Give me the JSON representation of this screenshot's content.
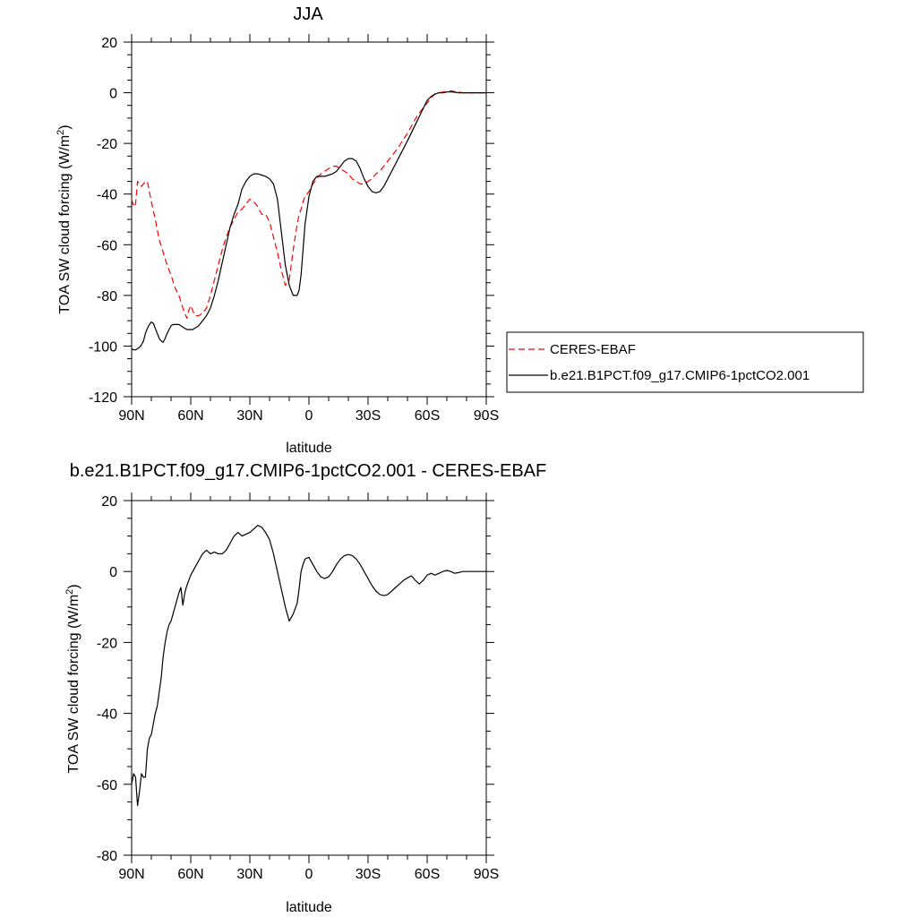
{
  "chart_data": [
    {
      "type": "line",
      "title": "JJA",
      "xlabel": "latitude",
      "ylabel": "TOA SW cloud forcing (W/m",
      "ylabel_sup": "2",
      "ylabel_end": ")",
      "xlim": [
        90,
        -90
      ],
      "ylim": [
        -120,
        20
      ],
      "x_ticks": [
        90,
        60,
        30,
        0,
        -30,
        -60,
        -90
      ],
      "x_tick_labels": [
        "90N",
        "60N",
        "30N",
        "0",
        "30S",
        "60S",
        "90S"
      ],
      "y_ticks": [
        20,
        0,
        -20,
        -40,
        -60,
        -80,
        -100,
        -120
      ],
      "y_tick_labels": [
        "20",
        "0",
        "-20",
        "-40",
        "-60",
        "-80",
        "-100",
        "-120"
      ],
      "legend_position": "right",
      "series": [
        {
          "name": "CERES-EBAF",
          "color": "#ff0000",
          "dash": "dashed",
          "x": [
            90,
            89,
            88,
            87,
            86,
            85,
            84,
            83,
            82,
            80,
            78,
            76,
            74,
            72,
            70,
            68,
            66,
            64,
            62,
            61,
            60,
            59,
            58,
            56,
            54,
            52,
            50,
            48,
            46,
            44,
            42,
            40,
            38,
            36,
            34,
            32,
            30,
            28,
            26,
            24,
            22,
            20,
            18,
            16,
            14,
            12,
            10,
            8,
            6,
            5,
            4,
            3,
            2,
            0,
            -2,
            -4,
            -6,
            -8,
            -10,
            -12,
            -14,
            -16,
            -18,
            -20,
            -22,
            -24,
            -26,
            -28,
            -30,
            -32,
            -34,
            -36,
            -38,
            -40,
            -45,
            -50,
            -55,
            -60,
            -62,
            -64,
            -66,
            -68,
            -70,
            -72,
            -74,
            -76,
            -78,
            -80,
            -85,
            -90
          ],
          "y": [
            -42,
            -45,
            -44,
            -35,
            -36,
            -37,
            -36,
            -35,
            -35,
            -43,
            -50,
            -58,
            -63,
            -68,
            -72,
            -77,
            -80,
            -85,
            -89,
            -86,
            -84,
            -86,
            -88,
            -88,
            -87,
            -85,
            -80,
            -74,
            -68,
            -62,
            -57,
            -53,
            -50,
            -47,
            -46,
            -44,
            -42,
            -43,
            -45,
            -48,
            -48,
            -51,
            -57,
            -63,
            -70,
            -76,
            -74,
            -62,
            -52,
            -48,
            -46,
            -43,
            -41,
            -39,
            -36,
            -34,
            -32,
            -31,
            -30,
            -29,
            -29,
            -30,
            -31,
            -32,
            -34,
            -35,
            -36,
            -36,
            -35,
            -34,
            -32,
            -31,
            -29,
            -27,
            -22,
            -16,
            -9,
            -4,
            -2,
            -0.5,
            0,
            0.3,
            0.5,
            0.8,
            0.5,
            0.3,
            0,
            0,
            0,
            0
          ]
        },
        {
          "name": "b.e21.B1PCT.f09_g17.CMIP6-1pctCO2.001",
          "color": "#000000",
          "dash": "solid",
          "x": [
            90,
            89,
            88,
            87,
            86,
            85,
            84,
            83,
            82,
            81,
            80,
            79,
            78,
            77,
            76,
            75,
            74,
            73,
            72,
            71,
            70,
            69,
            68,
            67,
            66,
            65,
            64,
            63,
            62,
            61,
            60,
            59,
            58,
            57,
            56,
            55,
            54,
            52,
            50,
            48,
            46,
            44,
            42,
            40,
            38,
            36,
            34,
            32,
            30,
            28,
            26,
            24,
            22,
            20,
            18,
            16,
            14,
            12,
            10,
            8,
            6,
            5,
            4,
            3,
            2,
            0,
            -2,
            -4,
            -6,
            -8,
            -10,
            -12,
            -14,
            -16,
            -18,
            -20,
            -22,
            -24,
            -26,
            -28,
            -30,
            -32,
            -34,
            -36,
            -38,
            -40,
            -42,
            -44,
            -46,
            -48,
            -50,
            -55,
            -60,
            -62,
            -64,
            -66,
            -68,
            -70,
            -72,
            -74,
            -76,
            -78,
            -80,
            -85,
            -90
          ],
          "y": [
            -101,
            -101.5,
            -101.5,
            -101,
            -100.5,
            -99.5,
            -98,
            -95,
            -93,
            -91.5,
            -90.5,
            -91,
            -93,
            -95,
            -97,
            -98,
            -98.5,
            -97,
            -95,
            -93.5,
            -92,
            -91.5,
            -91.5,
            -91.5,
            -91.5,
            -92,
            -92.5,
            -93,
            -93.5,
            -93.5,
            -93.5,
            -93.5,
            -93,
            -92.5,
            -92,
            -91,
            -90,
            -88,
            -85,
            -80,
            -74,
            -67,
            -60,
            -53,
            -48,
            -44,
            -38,
            -35,
            -33,
            -32,
            -32,
            -32.5,
            -33,
            -34,
            -36,
            -42,
            -55,
            -68,
            -76,
            -80,
            -80,
            -78,
            -72,
            -62,
            -52,
            -41,
            -35,
            -33,
            -33,
            -33,
            -32.5,
            -32,
            -31,
            -29,
            -27,
            -26,
            -26,
            -27,
            -30,
            -34,
            -37,
            -39,
            -39.5,
            -39,
            -37,
            -34,
            -31,
            -28,
            -25,
            -22,
            -19,
            -11,
            -3,
            -1.5,
            -0.5,
            0,
            0,
            0.3,
            0.3,
            0.2,
            0,
            0,
            0,
            0,
            0
          ]
        }
      ]
    },
    {
      "type": "line",
      "title": "b.e21.B1PCT.f09_g17.CMIP6-1pctCO2.001 - CERES-EBAF",
      "xlabel": "latitude",
      "ylabel": "TOA SW cloud forcing (W/m",
      "ylabel_sup": "2",
      "ylabel_end": ")",
      "xlim": [
        90,
        -90
      ],
      "ylim": [
        -80,
        20
      ],
      "x_ticks": [
        90,
        60,
        30,
        0,
        -30,
        -60,
        -90
      ],
      "x_tick_labels": [
        "90N",
        "60N",
        "30N",
        "0",
        "30S",
        "60S",
        "90S"
      ],
      "y_ticks": [
        20,
        0,
        -20,
        -40,
        -60,
        -80
      ],
      "y_tick_labels": [
        "20",
        "0",
        "-20",
        "-40",
        "-60",
        "-80"
      ],
      "series": [
        {
          "color": "#000000",
          "dash": "solid",
          "x": [
            90,
            89,
            88,
            87,
            86,
            85,
            84,
            83,
            82,
            81,
            80,
            79,
            78,
            77,
            76,
            75,
            74,
            73,
            72,
            71,
            70,
            69,
            68,
            67,
            66,
            65,
            64,
            63,
            62,
            61,
            60,
            59,
            58,
            56,
            54,
            52,
            50,
            48,
            46,
            44,
            42,
            40,
            38,
            36,
            34,
            32,
            30,
            28,
            26,
            24,
            22,
            20,
            18,
            16,
            14,
            12,
            10,
            8,
            6,
            5,
            4,
            3,
            2,
            1,
            0,
            -2,
            -4,
            -6,
            -8,
            -10,
            -12,
            -14,
            -16,
            -18,
            -20,
            -22,
            -24,
            -26,
            -28,
            -30,
            -32,
            -34,
            -36,
            -38,
            -40,
            -42,
            -44,
            -46,
            -48,
            -50,
            -52,
            -54,
            -56,
            -58,
            -60,
            -62,
            -64,
            -66,
            -68,
            -70,
            -72,
            -74,
            -76,
            -78,
            -80,
            -82,
            -84,
            -86,
            -88,
            -90
          ],
          "y": [
            -60,
            -57,
            -58,
            -66,
            -62,
            -57,
            -58,
            -58,
            -50,
            -47,
            -46,
            -43,
            -40,
            -38,
            -34,
            -30,
            -24,
            -20,
            -17,
            -15,
            -14,
            -12,
            -10,
            -8,
            -6,
            -4.5,
            -9.5,
            -6,
            -4,
            -2.5,
            -1,
            0,
            1,
            3,
            5,
            6,
            5,
            5.5,
            5,
            5,
            6,
            8,
            10,
            11,
            10,
            10.5,
            11,
            12,
            13,
            12.5,
            11,
            9,
            5,
            0,
            -5,
            -10,
            -14,
            -12,
            -9,
            -5,
            0,
            2,
            3.5,
            3.8,
            4,
            2,
            0,
            -1.5,
            -2,
            -1.5,
            0,
            2,
            3.5,
            4.5,
            4.8,
            4.5,
            3.5,
            2,
            0,
            -2,
            -4,
            -5.5,
            -6.5,
            -6.8,
            -6.5,
            -5.5,
            -4.5,
            -3.5,
            -2.5,
            -1.8,
            -1.2,
            -2.5,
            -3.5,
            -2.5,
            -1,
            -0.5,
            -1,
            -0.5,
            0,
            0.3,
            0,
            -0.5,
            -0.3,
            0,
            0,
            0,
            0,
            0,
            0,
            0
          ]
        }
      ]
    }
  ]
}
